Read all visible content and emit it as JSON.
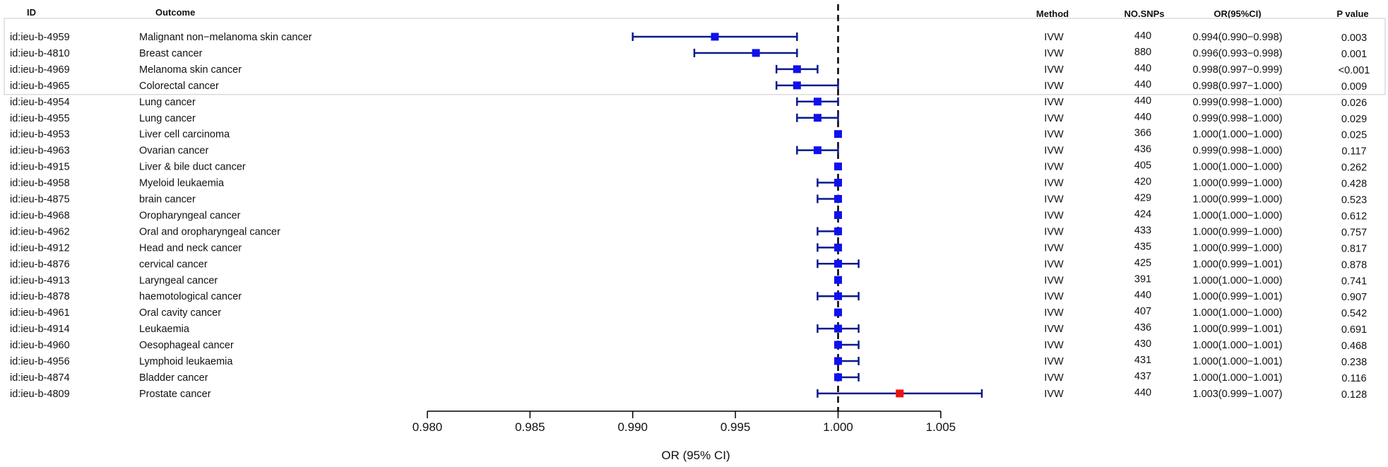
{
  "chart_data": {
    "type": "forest",
    "headers": {
      "id": "ID",
      "outcome": "Outcome",
      "method": "Method",
      "snps": "NO.SNPs",
      "or_ci": "OR(95%CI)",
      "pvalue": "P value"
    },
    "xlabel": "OR (95% CI)",
    "xlim": [
      0.98,
      1.007
    ],
    "xticks": [
      "0.980",
      "0.985",
      "0.990",
      "0.995",
      "1.000",
      "1.005"
    ],
    "reference_line": 1.0,
    "highlight_box_rows": 4,
    "colors": {
      "point": "#1010ee",
      "point_highlight": "#ee1111",
      "ci_line": "#0a1a8c",
      "highlight_box": "#c9c9c9"
    },
    "rows": [
      {
        "id": "id:ieu-b-4959",
        "outcome": "Malignant non−melanoma skin cancer",
        "method": "IVW",
        "snps": "440",
        "or_ci": "0.994(0.990−0.998)",
        "pvalue": "0.003",
        "or": 0.994,
        "lo": 0.99,
        "hi": 0.998,
        "highlight": false
      },
      {
        "id": "id:ieu-b-4810",
        "outcome": "Breast cancer",
        "method": "IVW",
        "snps": "880",
        "or_ci": "0.996(0.993−0.998)",
        "pvalue": "0.001",
        "or": 0.996,
        "lo": 0.993,
        "hi": 0.998,
        "highlight": false
      },
      {
        "id": "id:ieu-b-4969",
        "outcome": "Melanoma skin cancer",
        "method": "IVW",
        "snps": "440",
        "or_ci": "0.998(0.997−0.999)",
        "pvalue": "<0.001",
        "or": 0.998,
        "lo": 0.997,
        "hi": 0.999,
        "highlight": false
      },
      {
        "id": "id:ieu-b-4965",
        "outcome": "Colorectal cancer",
        "method": "IVW",
        "snps": "440",
        "or_ci": "0.998(0.997−1.000)",
        "pvalue": "0.009",
        "or": 0.998,
        "lo": 0.997,
        "hi": 1.0,
        "highlight": false
      },
      {
        "id": "id:ieu-b-4954",
        "outcome": "Lung cancer",
        "method": "IVW",
        "snps": "440",
        "or_ci": "0.999(0.998−1.000)",
        "pvalue": "0.026",
        "or": 0.999,
        "lo": 0.998,
        "hi": 1.0,
        "highlight": false
      },
      {
        "id": "id:ieu-b-4955",
        "outcome": "Lung cancer",
        "method": "IVW",
        "snps": "440",
        "or_ci": "0.999(0.998−1.000)",
        "pvalue": "0.029",
        "or": 0.999,
        "lo": 0.998,
        "hi": 1.0,
        "highlight": false
      },
      {
        "id": "id:ieu-b-4953",
        "outcome": "Liver cell carcinoma",
        "method": "IVW",
        "snps": "366",
        "or_ci": "1.000(1.000−1.000)",
        "pvalue": "0.025",
        "or": 1.0,
        "lo": 1.0,
        "hi": 1.0,
        "highlight": false
      },
      {
        "id": "id:ieu-b-4963",
        "outcome": "Ovarian cancer",
        "method": "IVW",
        "snps": "436",
        "or_ci": "0.999(0.998−1.000)",
        "pvalue": "0.117",
        "or": 0.999,
        "lo": 0.998,
        "hi": 1.0,
        "highlight": false
      },
      {
        "id": "id:ieu-b-4915",
        "outcome": "Liver & bile duct cancer",
        "method": "IVW",
        "snps": "405",
        "or_ci": "1.000(1.000−1.000)",
        "pvalue": "0.262",
        "or": 1.0,
        "lo": 1.0,
        "hi": 1.0,
        "highlight": false
      },
      {
        "id": "id:ieu-b-4958",
        "outcome": "Myeloid leukaemia",
        "method": "IVW",
        "snps": "420",
        "or_ci": "1.000(0.999−1.000)",
        "pvalue": "0.428",
        "or": 1.0,
        "lo": 0.999,
        "hi": 1.0,
        "highlight": false
      },
      {
        "id": "id:ieu-b-4875",
        "outcome": "brain cancer",
        "method": "IVW",
        "snps": "429",
        "or_ci": "1.000(0.999−1.000)",
        "pvalue": "0.523",
        "or": 1.0,
        "lo": 0.999,
        "hi": 1.0,
        "highlight": false
      },
      {
        "id": "id:ieu-b-4968",
        "outcome": "Oropharyngeal cancer",
        "method": "IVW",
        "snps": "424",
        "or_ci": "1.000(1.000−1.000)",
        "pvalue": "0.612",
        "or": 1.0,
        "lo": 1.0,
        "hi": 1.0,
        "highlight": false
      },
      {
        "id": "id:ieu-b-4962",
        "outcome": "Oral and oropharyngeal cancer",
        "method": "IVW",
        "snps": "433",
        "or_ci": "1.000(0.999−1.000)",
        "pvalue": "0.757",
        "or": 1.0,
        "lo": 0.999,
        "hi": 1.0,
        "highlight": false
      },
      {
        "id": "id:ieu-b-4912",
        "outcome": "Head and neck cancer",
        "method": "IVW",
        "snps": "435",
        "or_ci": "1.000(0.999−1.000)",
        "pvalue": "0.817",
        "or": 1.0,
        "lo": 0.999,
        "hi": 1.0,
        "highlight": false
      },
      {
        "id": "id:ieu-b-4876",
        "outcome": "cervical cancer",
        "method": "IVW",
        "snps": "425",
        "or_ci": "1.000(0.999−1.001)",
        "pvalue": "0.878",
        "or": 1.0,
        "lo": 0.999,
        "hi": 1.001,
        "highlight": false
      },
      {
        "id": "id:ieu-b-4913",
        "outcome": "Laryngeal cancer",
        "method": "IVW",
        "snps": "391",
        "or_ci": "1.000(1.000−1.000)",
        "pvalue": "0.741",
        "or": 1.0,
        "lo": 1.0,
        "hi": 1.0,
        "highlight": false
      },
      {
        "id": "id:ieu-b-4878",
        "outcome": "haemotological cancer",
        "method": "IVW",
        "snps": "440",
        "or_ci": "1.000(0.999−1.001)",
        "pvalue": "0.907",
        "or": 1.0,
        "lo": 0.999,
        "hi": 1.001,
        "highlight": false
      },
      {
        "id": "id:ieu-b-4961",
        "outcome": "Oral cavity cancer",
        "method": "IVW",
        "snps": "407",
        "or_ci": "1.000(1.000−1.000)",
        "pvalue": "0.542",
        "or": 1.0,
        "lo": 1.0,
        "hi": 1.0,
        "highlight": false
      },
      {
        "id": "id:ieu-b-4914",
        "outcome": "Leukaemia",
        "method": "IVW",
        "snps": "436",
        "or_ci": "1.000(0.999−1.001)",
        "pvalue": "0.691",
        "or": 1.0,
        "lo": 0.999,
        "hi": 1.001,
        "highlight": false
      },
      {
        "id": "id:ieu-b-4960",
        "outcome": "Oesophageal cancer",
        "method": "IVW",
        "snps": "430",
        "or_ci": "1.000(1.000−1.001)",
        "pvalue": "0.468",
        "or": 1.0,
        "lo": 1.0,
        "hi": 1.001,
        "highlight": false
      },
      {
        "id": "id:ieu-b-4956",
        "outcome": "Lymphoid leukaemia",
        "method": "IVW",
        "snps": "431",
        "or_ci": "1.000(1.000−1.001)",
        "pvalue": "0.238",
        "or": 1.0,
        "lo": 1.0,
        "hi": 1.001,
        "highlight": false
      },
      {
        "id": "id:ieu-b-4874",
        "outcome": "Bladder cancer",
        "method": "IVW",
        "snps": "437",
        "or_ci": "1.000(1.000−1.001)",
        "pvalue": "0.116",
        "or": 1.0,
        "lo": 1.0,
        "hi": 1.001,
        "highlight": false
      },
      {
        "id": "id:ieu-b-4809",
        "outcome": "Prostate cancer",
        "method": "IVW",
        "snps": "440",
        "or_ci": "1.003(0.999−1.007)",
        "pvalue": "0.128",
        "or": 1.003,
        "lo": 0.999,
        "hi": 1.007,
        "highlight": true
      }
    ]
  }
}
